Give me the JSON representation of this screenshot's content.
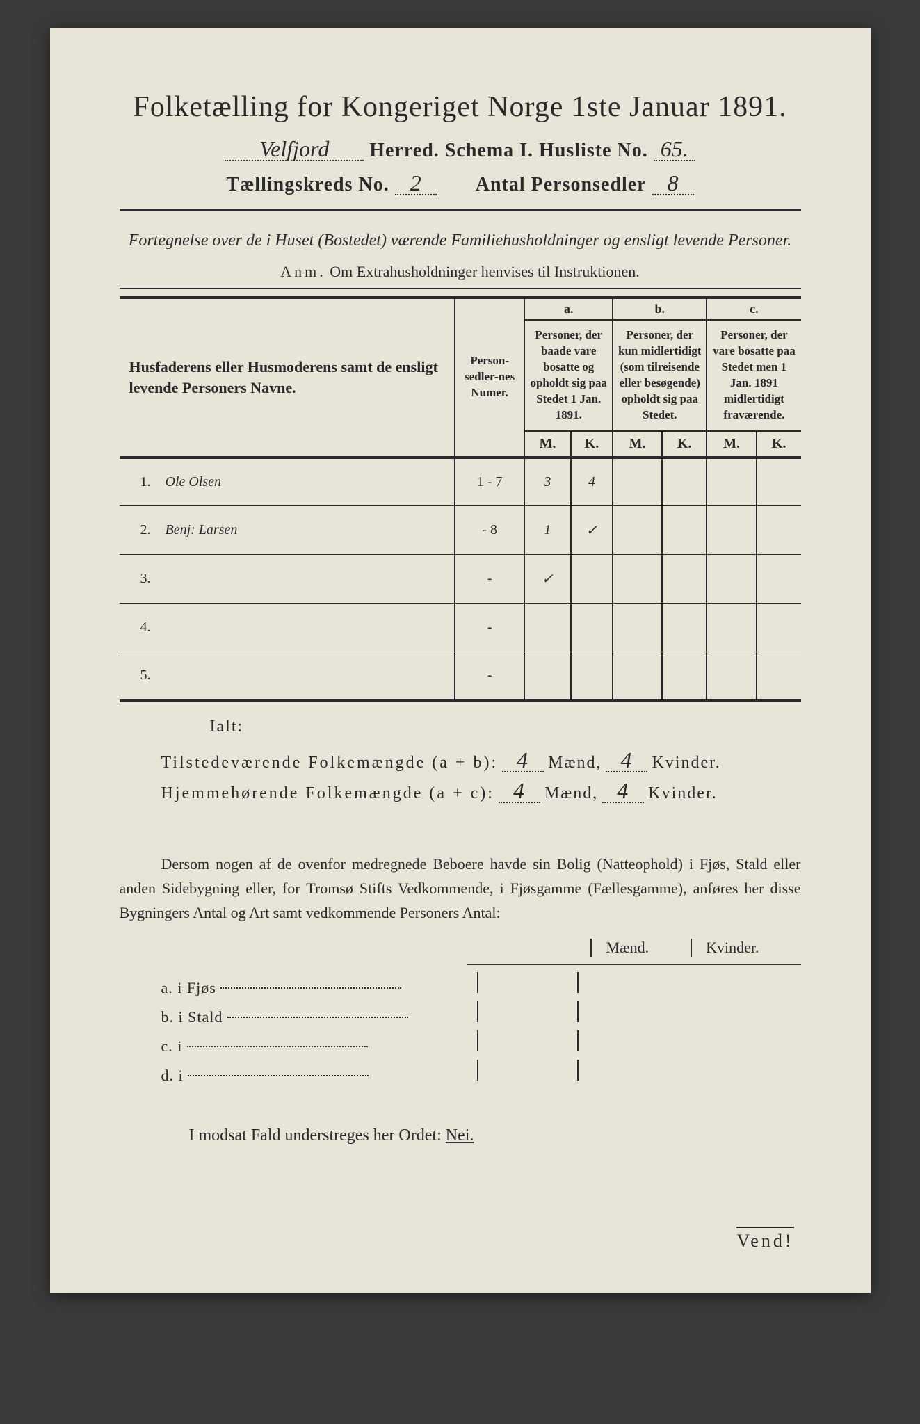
{
  "colors": {
    "page_bg": "#e8e4d8",
    "outer_bg": "#3a3a3a",
    "ink": "#2a2a2a"
  },
  "title": "Folketælling for Kongeriget Norge 1ste Januar 1891.",
  "header": {
    "herred_value": "Velfjord",
    "herred_label": "Herred.",
    "schema_label": "Schema I.",
    "husliste_label": "Husliste No.",
    "husliste_value": "65.",
    "kreds_label": "Tællingskreds No.",
    "kreds_value": "2",
    "antal_label": "Antal Personsedler",
    "antal_value": "8"
  },
  "subtitle": "Fortegnelse over de i Huset (Bostedet) værende Familiehusholdninger og ensligt levende Personer.",
  "anm_label": "Anm.",
  "anm_text": "Om Extrahusholdninger henvises til Instruktionen.",
  "table": {
    "col_names": "Husfaderens eller Husmoderens samt de ensligt levende Personers Navne.",
    "col_numer": "Person-sedler-nes Numer.",
    "abc": {
      "a": "a.",
      "b": "b.",
      "c": "c."
    },
    "col_a": "Personer, der baade vare bosatte og opholdt sig paa Stedet 1 Jan. 1891.",
    "col_b": "Personer, der kun midlertidigt (som tilreisende eller besøgende) opholdt sig paa Stedet.",
    "col_c": "Personer, der vare bosatte paa Stedet men 1 Jan. 1891 midlertidigt fraværende.",
    "M": "M.",
    "K": "K.",
    "rows": [
      {
        "n": "1.",
        "name": "Ole Olsen",
        "numer": "1 - 7",
        "aM": "3",
        "aK": "4",
        "bM": "",
        "bK": "",
        "cM": "",
        "cK": ""
      },
      {
        "n": "2.",
        "name": "Benj: Larsen",
        "numer": "- 8",
        "aM": "1",
        "aK": "✓",
        "bM": "",
        "bK": "",
        "cM": "",
        "cK": ""
      },
      {
        "n": "3.",
        "name": "",
        "numer": "-",
        "aM": "✓",
        "aK": "",
        "bM": "",
        "bK": "",
        "cM": "",
        "cK": ""
      },
      {
        "n": "4.",
        "name": "",
        "numer": "-",
        "aM": "",
        "aK": "",
        "bM": "",
        "bK": "",
        "cM": "",
        "cK": ""
      },
      {
        "n": "5.",
        "name": "",
        "numer": "-",
        "aM": "",
        "aK": "",
        "bM": "",
        "bK": "",
        "cM": "",
        "cK": ""
      }
    ]
  },
  "ialt": "Ialt:",
  "summary": {
    "line1_label": "Tilstedeværende Folkemængde (a + b):",
    "line2_label": "Hjemmehørende Folkemængde (a + c):",
    "maend": "Mænd,",
    "kvinder": "Kvinder.",
    "l1m": "4",
    "l1k": "4",
    "l2m": "4",
    "l2k": "4"
  },
  "para": "Dersom nogen af de ovenfor medregnede Beboere havde sin Bolig (Natteophold) i Fjøs, Stald eller anden Sidebygning eller, for Tromsø Stifts Vedkommende, i Fjøsgamme (Fællesgamme), anføres her disse Bygningers Antal og Art samt vedkommende Personers Antal:",
  "mk": {
    "m": "Mænd.",
    "k": "Kvinder."
  },
  "buildings": [
    {
      "lead": "a.  i      Fjøs"
    },
    {
      "lead": "b.  i      Stald"
    },
    {
      "lead": "c.  i"
    },
    {
      "lead": "d.  i"
    }
  ],
  "nei_text": "I modsat Fald understreges her Ordet:",
  "nei_word": "Nei.",
  "vend": "Vend!"
}
